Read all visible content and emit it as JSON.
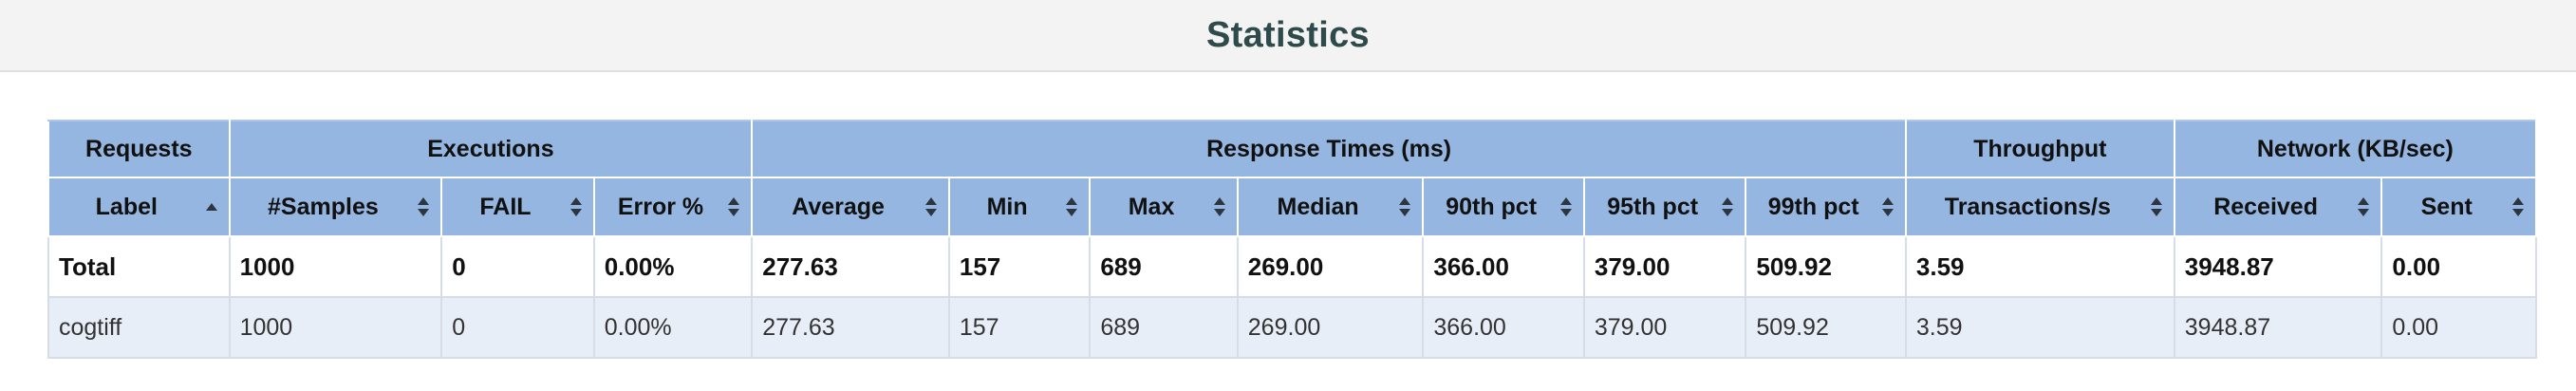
{
  "page": {
    "title": "Statistics"
  },
  "table": {
    "groups": {
      "requests": "Requests",
      "executions": "Executions",
      "response_times": "Response Times (ms)",
      "throughput": "Throughput",
      "network": "Network (KB/sec)"
    },
    "columns": {
      "label": "Label",
      "samples": "#Samples",
      "fail": "FAIL",
      "error_pct": "Error %",
      "average": "Average",
      "min": "Min",
      "max": "Max",
      "median": "Median",
      "p90": "90th pct",
      "p95": "95th pct",
      "p99": "99th pct",
      "transactions": "Transactions/s",
      "received": "Received",
      "sent": "Sent"
    },
    "sort": {
      "column": "Label",
      "direction": "ascending",
      "icon": "sort-ascending-icon"
    },
    "total": {
      "label": "Total",
      "samples": "1000",
      "fail": "0",
      "error_pct": "0.00%",
      "average": "277.63",
      "min": "157",
      "max": "689",
      "median": "269.00",
      "p90": "366.00",
      "p95": "379.00",
      "p99": "509.92",
      "transactions": "3.59",
      "received": "3948.87",
      "sent": "0.00"
    },
    "rows": [
      {
        "label": "cogtiff",
        "samples": "1000",
        "fail": "0",
        "error_pct": "0.00%",
        "average": "277.63",
        "min": "157",
        "max": "689",
        "median": "269.00",
        "p90": "366.00",
        "p95": "379.00",
        "p99": "509.92",
        "transactions": "3.59",
        "received": "3948.87",
        "sent": "0.00"
      }
    ]
  },
  "colors": {
    "header_bg": "#95b6e0",
    "row_alt_bg": "#e8eef8",
    "title_color": "#2f4a4a",
    "title_bar_bg": "#f3f3f3"
  }
}
